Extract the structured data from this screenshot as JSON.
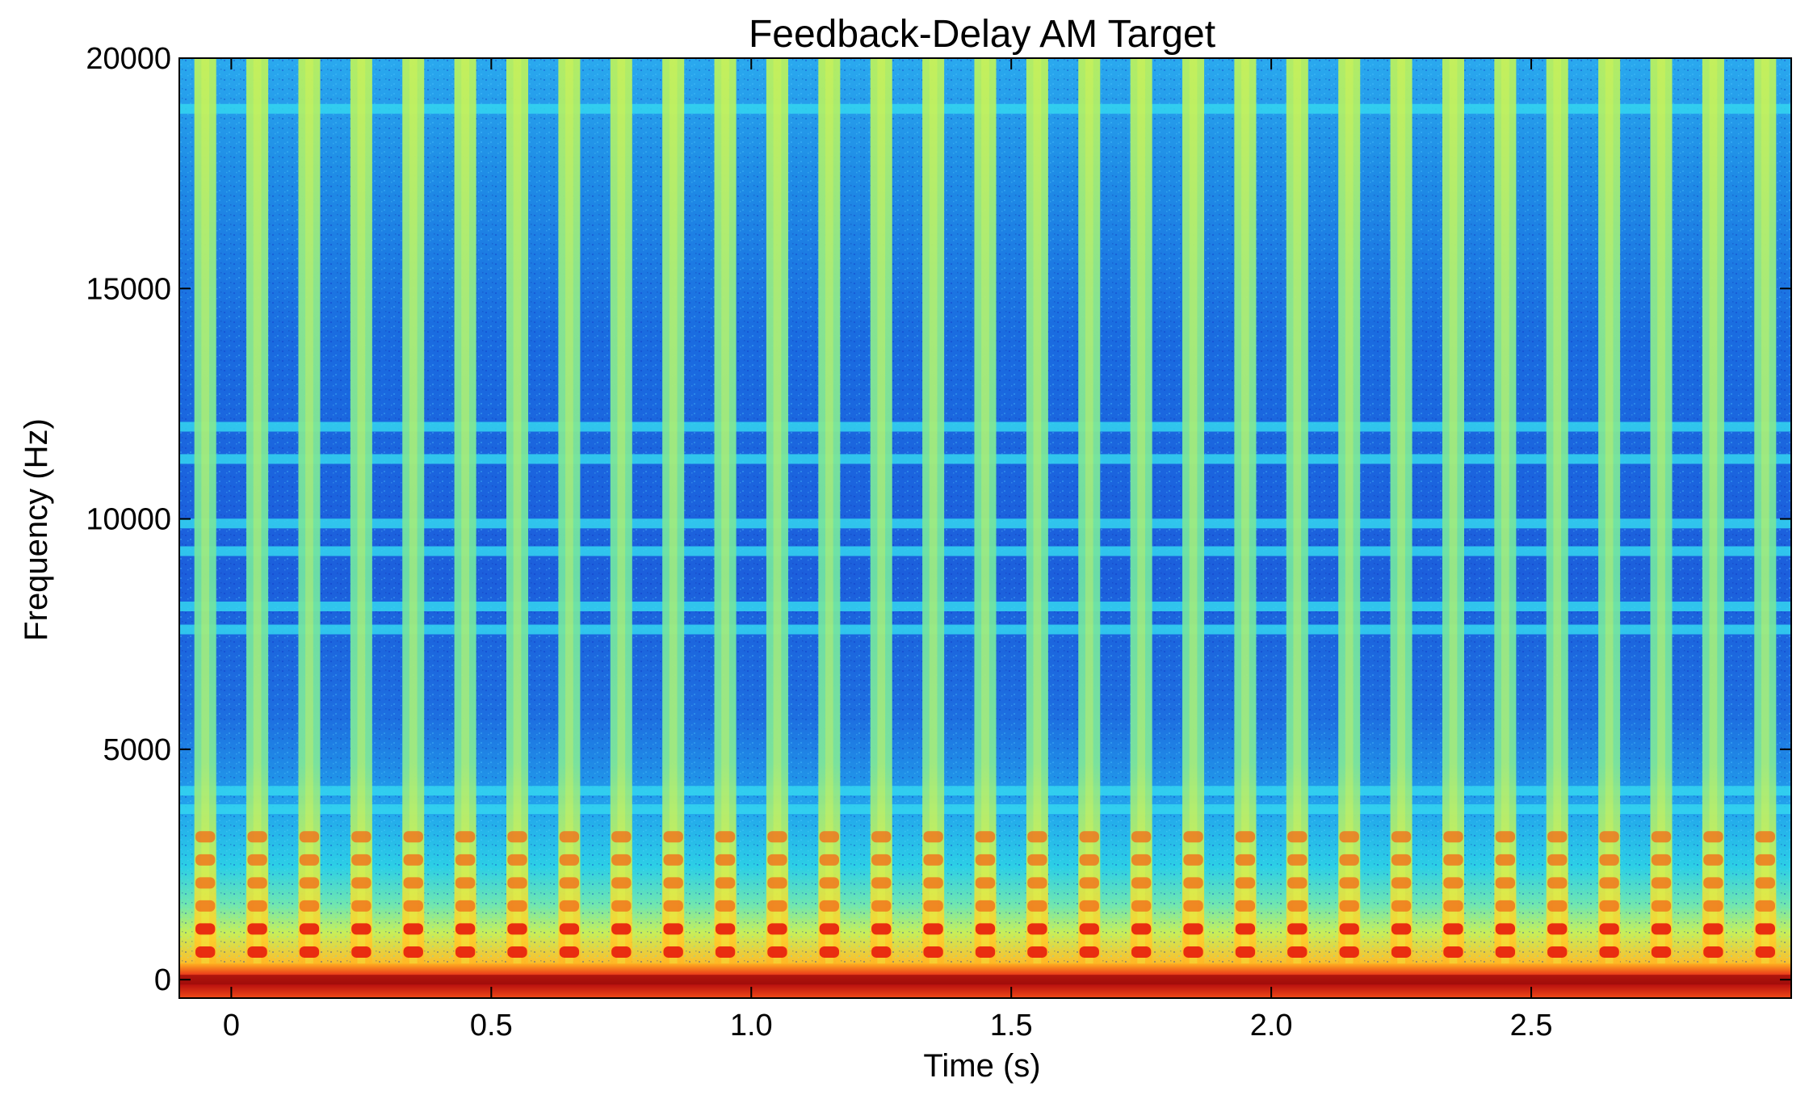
{
  "chart_data": {
    "type": "heatmap",
    "title": "Feedback-Delay AM Target",
    "xlabel": "Time (s)",
    "ylabel": "Frequency (Hz)",
    "xlim": [
      -0.1,
      3.0
    ],
    "ylim": [
      -400,
      20000
    ],
    "x_ticks": [
      {
        "value": 0,
        "label": "0"
      },
      {
        "value": 0.5,
        "label": "0.5"
      },
      {
        "value": 1.0,
        "label": "1.0"
      },
      {
        "value": 1.5,
        "label": "1.5"
      },
      {
        "value": 2.0,
        "label": "2.0"
      },
      {
        "value": 2.5,
        "label": "2.5"
      }
    ],
    "y_ticks": [
      {
        "value": 0,
        "label": "0"
      },
      {
        "value": 5000,
        "label": "5000"
      },
      {
        "value": 10000,
        "label": "10000"
      },
      {
        "value": 15000,
        "label": "15000"
      },
      {
        "value": 20000,
        "label": "20000"
      }
    ],
    "colormap": "jet",
    "modulation_period_s": 0.1,
    "first_pulse_s": -0.05,
    "pulse_count": 31,
    "resonance_bands_hz": [
      3700,
      4100,
      7600,
      8100,
      9300,
      9900,
      11300,
      12000,
      18900
    ],
    "low_harmonics_hz": [
      0,
      600,
      1100,
      1600,
      2100,
      2600,
      3100
    ]
  }
}
